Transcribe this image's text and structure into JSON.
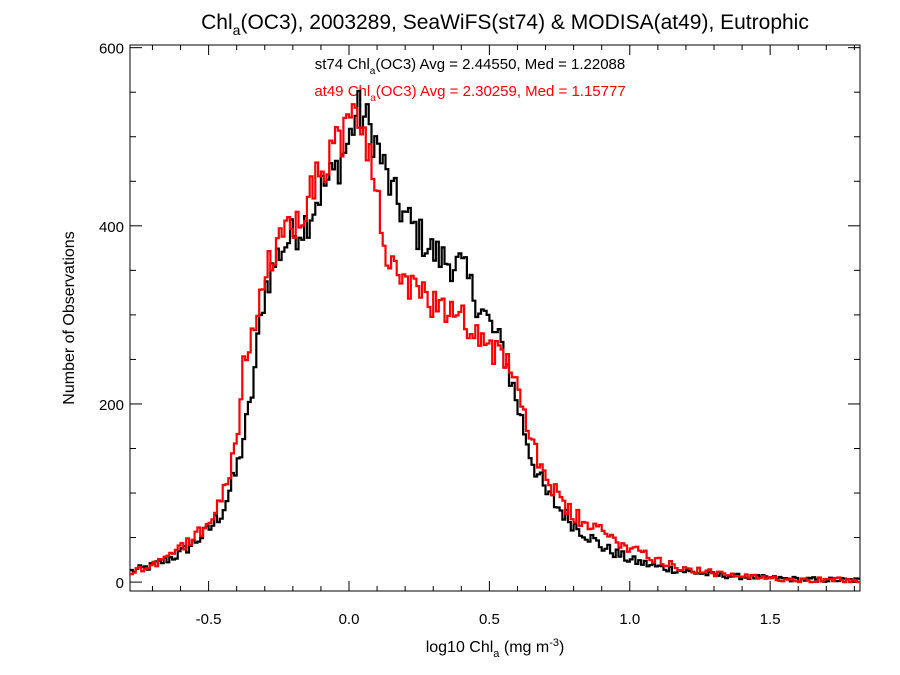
{
  "chart_data": {
    "type": "histogram-step",
    "title": {
      "prefix": "Chl",
      "sub": "a",
      "suffix": "(OC3), 2003289, SeaWiFS(st74) & MODISA(at49), Eutrophic"
    },
    "xlabel": {
      "prefix": "log10 Chl",
      "sub": "a",
      "mid": " (mg m",
      "sup": "-3",
      "suffix": ")"
    },
    "ylabel": "Number of Observations",
    "xlim": [
      -0.78,
      1.82
    ],
    "ylim": [
      -10,
      603
    ],
    "x_ticks": [
      {
        "value": -0.5,
        "label": "-0.5"
      },
      {
        "value": 0.0,
        "label": "0.0"
      },
      {
        "value": 0.5,
        "label": "0.5"
      },
      {
        "value": 1.0,
        "label": "1.0"
      },
      {
        "value": 1.5,
        "label": "1.5"
      }
    ],
    "y_ticks": [
      {
        "value": 0,
        "label": "0"
      },
      {
        "value": 200,
        "label": "200"
      },
      {
        "value": 400,
        "label": "400"
      },
      {
        "value": 600,
        "label": "600"
      }
    ],
    "grid": false,
    "series": [
      {
        "name": "st74",
        "color": "#000000",
        "stats": {
          "prefix": "st74 Chl",
          "sub": "a",
          "suffix": "(OC3) Avg = 2.44550, Med = 1.22088"
        },
        "points": [
          [
            -0.78,
            12
          ],
          [
            -0.7,
            18
          ],
          [
            -0.6,
            32
          ],
          [
            -0.5,
            58
          ],
          [
            -0.45,
            80
          ],
          [
            -0.4,
            125
          ],
          [
            -0.35,
            200
          ],
          [
            -0.32,
            280
          ],
          [
            -0.3,
            330
          ],
          [
            -0.25,
            370
          ],
          [
            -0.2,
            390
          ],
          [
            -0.15,
            405
          ],
          [
            -0.1,
            440
          ],
          [
            -0.05,
            460
          ],
          [
            0.0,
            495
          ],
          [
            0.03,
            530
          ],
          [
            0.06,
            520
          ],
          [
            0.08,
            505
          ],
          [
            0.1,
            490
          ],
          [
            0.15,
            440
          ],
          [
            0.2,
            410
          ],
          [
            0.25,
            390
          ],
          [
            0.3,
            370
          ],
          [
            0.35,
            360
          ],
          [
            0.4,
            355
          ],
          [
            0.45,
            320
          ],
          [
            0.5,
            290
          ],
          [
            0.55,
            260
          ],
          [
            0.6,
            200
          ],
          [
            0.65,
            140
          ],
          [
            0.7,
            100
          ],
          [
            0.8,
            65
          ],
          [
            0.9,
            40
          ],
          [
            1.0,
            25
          ],
          [
            1.1,
            17
          ],
          [
            1.2,
            12
          ],
          [
            1.3,
            8
          ],
          [
            1.4,
            6
          ],
          [
            1.6,
            3
          ],
          [
            1.82,
            2
          ]
        ]
      },
      {
        "name": "at49",
        "color": "#ff0000",
        "stats": {
          "prefix": "at49 Chl",
          "sub": "a",
          "suffix": "(OC3) Avg = 2.30259, Med = 1.15777"
        },
        "points": [
          [
            -0.78,
            10
          ],
          [
            -0.7,
            20
          ],
          [
            -0.6,
            38
          ],
          [
            -0.5,
            65
          ],
          [
            -0.45,
            95
          ],
          [
            -0.4,
            160
          ],
          [
            -0.38,
            235
          ],
          [
            -0.35,
            270
          ],
          [
            -0.3,
            340
          ],
          [
            -0.25,
            380
          ],
          [
            -0.2,
            405
          ],
          [
            -0.15,
            430
          ],
          [
            -0.1,
            460
          ],
          [
            -0.05,
            490
          ],
          [
            0.0,
            510
          ],
          [
            0.02,
            525
          ],
          [
            0.05,
            510
          ],
          [
            0.08,
            470
          ],
          [
            0.1,
            430
          ],
          [
            0.13,
            380
          ],
          [
            0.15,
            350
          ],
          [
            0.2,
            330
          ],
          [
            0.25,
            320
          ],
          [
            0.3,
            315
          ],
          [
            0.35,
            310
          ],
          [
            0.4,
            300
          ],
          [
            0.45,
            285
          ],
          [
            0.5,
            260
          ],
          [
            0.55,
            260
          ],
          [
            0.6,
            210
          ],
          [
            0.65,
            160
          ],
          [
            0.7,
            120
          ],
          [
            0.75,
            90
          ],
          [
            0.8,
            75
          ],
          [
            0.9,
            55
          ],
          [
            1.0,
            40
          ],
          [
            1.1,
            25
          ],
          [
            1.2,
            15
          ],
          [
            1.3,
            10
          ],
          [
            1.4,
            6
          ],
          [
            1.6,
            3
          ],
          [
            1.82,
            2
          ]
        ]
      }
    ]
  }
}
